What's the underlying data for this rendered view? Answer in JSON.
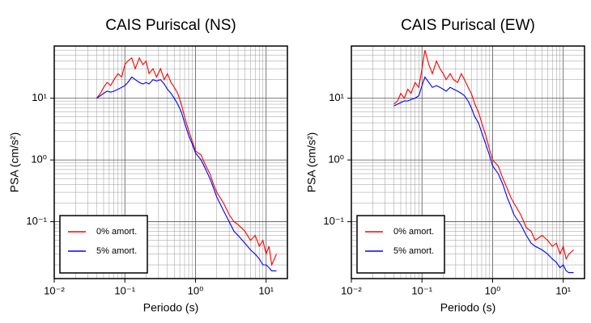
{
  "chart_data": [
    {
      "type": "line",
      "title": "CAIS Puriscal (NS)",
      "xlabel": "Periodo (s)",
      "ylabel": "PSA (cm/s²)",
      "log_x": true,
      "log_y": true,
      "grid": true,
      "legend": "lower left",
      "xlim": [
        0.01,
        20
      ],
      "ylim": [
        0.012,
        70
      ],
      "xticks": [
        {
          "value": 0.01,
          "label": "10⁻²"
        },
        {
          "value": 0.1,
          "label": "10⁻¹"
        },
        {
          "value": 1,
          "label": "10⁰"
        },
        {
          "value": 10,
          "label": "10¹"
        }
      ],
      "yticks": [
        {
          "value": 0.1,
          "label": "10⁻¹"
        },
        {
          "value": 1,
          "label": "10⁰"
        },
        {
          "value": 10,
          "label": "10¹"
        }
      ],
      "x": [
        0.04,
        0.045,
        0.05,
        0.056,
        0.063,
        0.07,
        0.08,
        0.09,
        0.1,
        0.11,
        0.125,
        0.14,
        0.16,
        0.18,
        0.2,
        0.22,
        0.25,
        0.28,
        0.32,
        0.36,
        0.4,
        0.45,
        0.5,
        0.56,
        0.63,
        0.7,
        0.8,
        0.9,
        1.0,
        1.2,
        1.4,
        1.6,
        1.8,
        2.0,
        2.5,
        3.0,
        3.5,
        4.0,
        5.0,
        6.0,
        7.0,
        8.0,
        9.0,
        10,
        11,
        12,
        14
      ],
      "series": [
        {
          "name": "0% amort.",
          "color": "#ff0000",
          "values": [
            10,
            12,
            15,
            18,
            16,
            20,
            25,
            22,
            35,
            40,
            45,
            30,
            45,
            35,
            40,
            25,
            30,
            22,
            30,
            20,
            25,
            18,
            15,
            12,
            8,
            5,
            3,
            2,
            1.4,
            1.2,
            0.8,
            0.6,
            0.4,
            0.3,
            0.2,
            0.13,
            0.1,
            0.09,
            0.07,
            0.05,
            0.06,
            0.04,
            0.05,
            0.03,
            0.04,
            0.02,
            0.03
          ]
        },
        {
          "name": "5% amort.",
          "color": "#0000ff",
          "values": [
            10,
            11,
            12,
            13,
            12.5,
            13,
            14,
            15,
            16,
            18,
            22,
            20,
            18,
            17,
            18,
            17,
            20,
            19,
            20,
            17,
            14,
            12,
            10,
            8,
            6,
            4,
            2.5,
            1.8,
            1.3,
            1.0,
            0.7,
            0.5,
            0.35,
            0.25,
            0.15,
            0.1,
            0.07,
            0.06,
            0.045,
            0.035,
            0.03,
            0.025,
            0.02,
            0.02,
            0.018,
            0.016,
            0.016
          ]
        }
      ]
    },
    {
      "type": "line",
      "title": "CAIS Puriscal (EW)",
      "xlabel": "Periodo (s)",
      "ylabel": "PSA (cm/s²)",
      "log_x": true,
      "log_y": true,
      "grid": true,
      "legend": "lower left",
      "xlim": [
        0.01,
        20
      ],
      "ylim": [
        0.012,
        70
      ],
      "xticks": [
        {
          "value": 0.01,
          "label": "10⁻²"
        },
        {
          "value": 0.1,
          "label": "10⁻¹"
        },
        {
          "value": 1,
          "label": "10⁰"
        },
        {
          "value": 10,
          "label": "10¹"
        }
      ],
      "yticks": [
        {
          "value": 0.1,
          "label": "10⁻¹"
        },
        {
          "value": 1,
          "label": "10⁰"
        },
        {
          "value": 10,
          "label": "10¹"
        }
      ],
      "x": [
        0.04,
        0.045,
        0.05,
        0.056,
        0.063,
        0.07,
        0.08,
        0.09,
        0.1,
        0.11,
        0.125,
        0.14,
        0.16,
        0.18,
        0.2,
        0.22,
        0.25,
        0.28,
        0.32,
        0.36,
        0.4,
        0.45,
        0.5,
        0.56,
        0.63,
        0.7,
        0.8,
        0.9,
        1.0,
        1.2,
        1.4,
        1.6,
        1.8,
        2.0,
        2.5,
        3.0,
        3.5,
        4.0,
        5.0,
        6.0,
        7.0,
        8.0,
        9.0,
        10,
        11,
        12,
        14
      ],
      "series": [
        {
          "name": "0% amort.",
          "color": "#ff0000",
          "values": [
            8,
            9,
            12,
            10,
            14,
            12,
            18,
            15,
            30,
            60,
            35,
            25,
            40,
            30,
            25,
            20,
            25,
            20,
            18,
            25,
            20,
            15,
            12,
            8,
            6,
            4,
            2.5,
            1.5,
            1.0,
            0.8,
            0.5,
            0.35,
            0.25,
            0.2,
            0.13,
            0.08,
            0.07,
            0.05,
            0.06,
            0.05,
            0.04,
            0.045,
            0.03,
            0.04,
            0.025,
            0.03,
            0.035
          ]
        },
        {
          "name": "5% amort.",
          "color": "#0000ff",
          "values": [
            7.5,
            8,
            8.5,
            9,
            9,
            9.5,
            10,
            11,
            16,
            22,
            18,
            15,
            16,
            15,
            14,
            13,
            15,
            14,
            13,
            12,
            11,
            9,
            7,
            5,
            4,
            2.8,
            1.8,
            1.2,
            0.8,
            0.6,
            0.4,
            0.25,
            0.18,
            0.13,
            0.09,
            0.06,
            0.045,
            0.04,
            0.035,
            0.03,
            0.025,
            0.022,
            0.018,
            0.02,
            0.016,
            0.015,
            0.015
          ]
        }
      ]
    }
  ]
}
